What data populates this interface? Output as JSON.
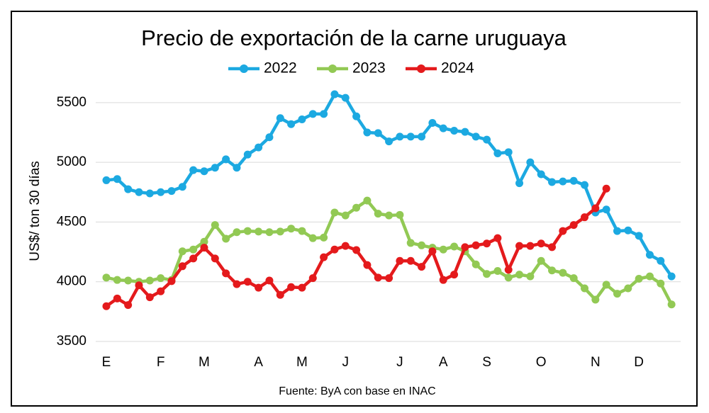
{
  "chart_data": {
    "type": "line",
    "title": "Precio de exportación de la carne uruguaya",
    "y_label": "US$/ ton 30 días",
    "source": "Fuente: ByA con base en INAC",
    "categories": [
      "E",
      null,
      null,
      null,
      null,
      "F",
      null,
      null,
      null,
      "M",
      null,
      null,
      null,
      null,
      "A",
      null,
      null,
      null,
      "M",
      null,
      null,
      null,
      "J",
      null,
      null,
      null,
      null,
      "J",
      null,
      null,
      null,
      "A",
      null,
      null,
      null,
      "S",
      null,
      null,
      null,
      null,
      "O",
      null,
      null,
      null,
      null,
      "N",
      null,
      null,
      null,
      "D",
      null,
      null,
      null
    ],
    "ylim": [
      3500,
      5600
    ],
    "yticks": [
      3500,
      4000,
      4500,
      5000,
      5500
    ],
    "grid": true,
    "legend": "top",
    "series": [
      {
        "name": "2022",
        "color": "#1ca9e1",
        "values": [
          4850,
          4860,
          4775,
          4750,
          4740,
          4750,
          4760,
          4795,
          4935,
          4925,
          4955,
          5025,
          4955,
          5065,
          5125,
          5210,
          5370,
          5320,
          5360,
          5405,
          5405,
          5570,
          5540,
          5385,
          5250,
          5245,
          5175,
          5215,
          5215,
          5215,
          5330,
          5285,
          5265,
          5255,
          5215,
          5190,
          5075,
          5085,
          4825,
          5000,
          4900,
          4835,
          4840,
          4845,
          4810,
          4580,
          4605,
          4425,
          4430,
          4385,
          4225,
          4175,
          4045
        ]
      },
      {
        "name": "2023",
        "color": "#92c954",
        "values": [
          4035,
          4015,
          4010,
          4000,
          4010,
          4030,
          4015,
          4255,
          4270,
          4335,
          4475,
          4360,
          4415,
          4425,
          4420,
          4415,
          4420,
          4445,
          4425,
          4365,
          4370,
          4580,
          4555,
          4620,
          4680,
          4570,
          4555,
          4560,
          4325,
          4305,
          4285,
          4270,
          4295,
          4255,
          4145,
          4065,
          4090,
          4035,
          4060,
          4045,
          4175,
          4095,
          4075,
          4030,
          3945,
          3850,
          3975,
          3900,
          3945,
          4025,
          4045,
          3985,
          3810
        ]
      },
      {
        "name": "2024",
        "color": "#e41a1c",
        "values": [
          3795,
          3860,
          3805,
          3970,
          3870,
          3920,
          4005,
          4130,
          4195,
          4285,
          4195,
          4070,
          3980,
          4000,
          3950,
          4010,
          3890,
          3955,
          3950,
          4030,
          4205,
          4270,
          4300,
          4265,
          4140,
          4035,
          4030,
          4175,
          4175,
          4125,
          4255,
          4015,
          4060,
          4290,
          4305,
          4320,
          4365,
          4100,
          4300,
          4300,
          4320,
          4290,
          4425,
          4475,
          4540,
          4615,
          4780,
          null,
          null,
          null,
          null,
          null,
          null
        ]
      }
    ]
  }
}
